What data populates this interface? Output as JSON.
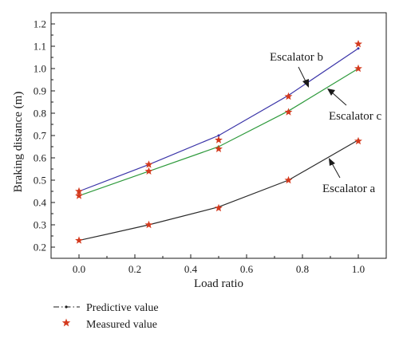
{
  "chart_data": {
    "type": "line",
    "xlabel": "Load ratio",
    "ylabel": "Braking distance (m)",
    "xlim": [
      -0.1,
      1.1
    ],
    "ylim": [
      0.15,
      1.25
    ],
    "xticks": [
      "0.0",
      "0.2",
      "0.4",
      "0.6",
      "0.8",
      "1.0"
    ],
    "xtick_values": [
      0.0,
      0.2,
      0.4,
      0.6,
      0.8,
      1.0
    ],
    "yticks": [
      "0.2",
      "0.3",
      "0.4",
      "0.5",
      "0.6",
      "0.7",
      "0.8",
      "0.9",
      "1.0",
      "1.1",
      "1.2"
    ],
    "ytick_values": [
      0.2,
      0.3,
      0.4,
      0.5,
      0.6,
      0.7,
      0.8,
      0.9,
      1.0,
      1.1,
      1.2
    ],
    "grid": false,
    "x": [
      0.0,
      0.25,
      0.5,
      0.75,
      1.0
    ],
    "series": [
      {
        "label": "Escalator a",
        "color": "#2b2b2b",
        "predictive": [
          0.23,
          0.3,
          0.38,
          0.5,
          0.68
        ],
        "measured": [
          0.23,
          0.3,
          0.375,
          0.5,
          0.675
        ]
      },
      {
        "label": "Escalator b",
        "color": "#3a34a8",
        "predictive": [
          0.45,
          0.57,
          0.7,
          0.88,
          1.09
        ],
        "measured": [
          0.45,
          0.57,
          0.68,
          0.875,
          1.11
        ]
      },
      {
        "label": "Escalator c",
        "color": "#2e9a3c",
        "predictive": [
          0.43,
          0.54,
          0.65,
          0.81,
          1.0
        ],
        "measured": [
          0.43,
          0.54,
          0.64,
          0.805,
          1.0
        ]
      }
    ],
    "legend": {
      "placement": "bottom-left",
      "predictive_label": "Predictive value",
      "measured_label": "Measured value"
    },
    "marker_color": "#d43a1e"
  }
}
